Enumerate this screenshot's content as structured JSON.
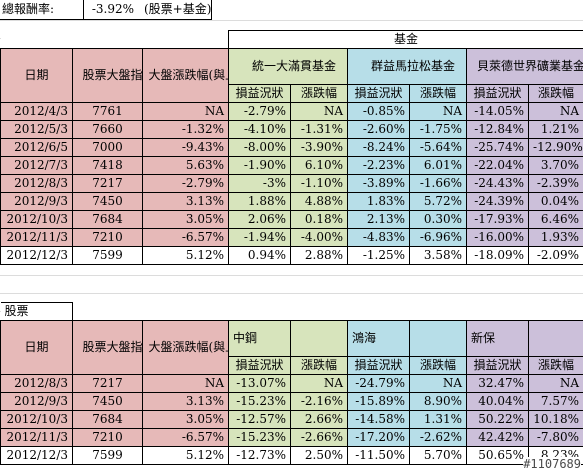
{
  "summary": {
    "label": "總報酬率:",
    "value": "-3.92%",
    "note": "(股票+基金)"
  },
  "fund_table": {
    "group_title": "基金",
    "date_header": "日期",
    "index_header": "股票大盤指數",
    "change_header": "大盤漲跌幅(與上月比較)",
    "funds": [
      {
        "name": "統一大滿貫基金",
        "color": "#d7e4bc"
      },
      {
        "name": "群益馬拉松基金",
        "color": "#b7dee8"
      },
      {
        "name": "貝萊德世界礦業基金",
        "color": "#ccc0da"
      }
    ],
    "sub_pl": "損益況狀",
    "sub_chg": "漲跌幅",
    "rows": [
      [
        "2012/4/3",
        "7761",
        "NA",
        "-2.79%",
        "NA",
        "-0.85%",
        "NA",
        "-14.05%",
        "NA"
      ],
      [
        "2012/5/3",
        "7660",
        "-1.32%",
        "-4.10%",
        "-1.31%",
        "-2.60%",
        "-1.75%",
        "-12.84%",
        "1.21%"
      ],
      [
        "2012/6/5",
        "7000",
        "-9.43%",
        "-8.00%",
        "-3.90%",
        "-8.24%",
        "-5.64%",
        "-25.74%",
        "-12.90%"
      ],
      [
        "2012/7/3",
        "7418",
        "5.63%",
        "-1.90%",
        "6.10%",
        "-2.23%",
        "6.01%",
        "-22.04%",
        "3.70%"
      ],
      [
        "2012/8/3",
        "7217",
        "-2.79%",
        "-3%",
        "-1.10%",
        "-3.89%",
        "-1.66%",
        "-24.43%",
        "-2.39%"
      ],
      [
        "2012/9/3",
        "7450",
        "3.13%",
        "1.88%",
        "4.88%",
        "1.83%",
        "5.72%",
        "-24.39%",
        "0.04%"
      ],
      [
        "2012/10/3",
        "7684",
        "3.05%",
        "2.06%",
        "0.18%",
        "2.13%",
        "0.30%",
        "-17.93%",
        "6.46%"
      ],
      [
        "2012/11/3",
        "7210",
        "-6.57%",
        "-1.94%",
        "-4.00%",
        "-4.83%",
        "-6.96%",
        "-16.00%",
        "1.93%"
      ],
      [
        "2012/12/3",
        "7599",
        "5.12%",
        "0.94%",
        "2.88%",
        "-1.25%",
        "3.58%",
        "-18.09%",
        "-2.09%"
      ]
    ]
  },
  "stock_table": {
    "section_title": "股票",
    "date_header": "日期",
    "index_header": "股票大盤指數",
    "change_header": "大盤漲跌幅(與上月比較)",
    "stocks": [
      {
        "name": "中鋼",
        "color": "#d7e4bc"
      },
      {
        "name": "鴻海",
        "color": "#b7dee8"
      },
      {
        "name": "新保",
        "color": "#ccc0da"
      }
    ],
    "sub_pl": "損益況狀",
    "sub_chg": "漲跌幅",
    "rows": [
      [
        "2012/8/3",
        "7217",
        "NA",
        "-13.07%",
        "NA",
        "-24.79%",
        "NA",
        "32.47%",
        "NA"
      ],
      [
        "2012/9/3",
        "7450",
        "3.13%",
        "-15.23%",
        "-2.16%",
        "-15.89%",
        "8.90%",
        "40.04%",
        "7.57%"
      ],
      [
        "2012/10/3",
        "7684",
        "3.05%",
        "-12.57%",
        "2.66%",
        "-14.58%",
        "1.31%",
        "50.22%",
        "10.18%"
      ],
      [
        "2012/11/3",
        "7210",
        "-6.57%",
        "-15.23%",
        "-2.66%",
        "-17.20%",
        "-2.62%",
        "42.42%",
        "-7.80%"
      ],
      [
        "2012/12/3",
        "7599",
        "5.12%",
        "-12.73%",
        "2.50%",
        "-11.50%",
        "5.70%",
        "50.65%",
        "8.23%"
      ]
    ]
  },
  "watermark": "#1107689"
}
